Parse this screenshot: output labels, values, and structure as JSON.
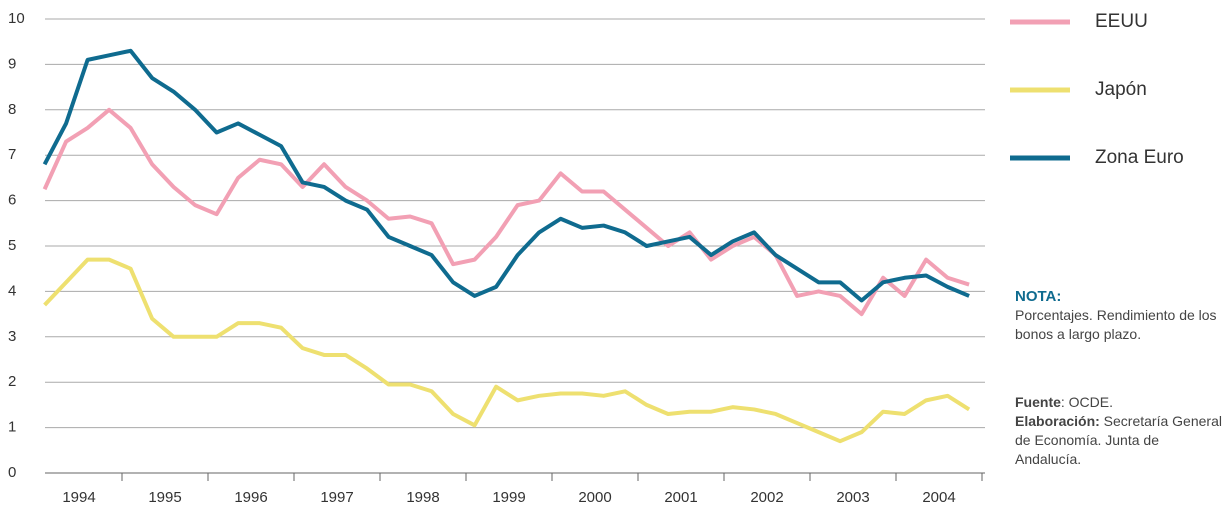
{
  "chart_data": {
    "type": "line",
    "x": [
      1994.1,
      1994.35,
      1994.6,
      1994.85,
      1995.1,
      1995.35,
      1995.6,
      1995.85,
      1996.1,
      1996.35,
      1996.6,
      1996.85,
      1997.1,
      1997.35,
      1997.6,
      1997.85,
      1998.1,
      1998.35,
      1998.6,
      1998.85,
      1999.1,
      1999.35,
      1999.6,
      1999.85,
      2000.1,
      2000.35,
      2000.6,
      2000.85,
      2001.1,
      2001.35,
      2001.6,
      2001.85,
      2002.1,
      2002.35,
      2002.6,
      2002.85,
      2003.1,
      2003.35,
      2003.6,
      2003.85,
      2004.1,
      2004.35,
      2004.6,
      2004.85
    ],
    "series": [
      {
        "name": "EEUU",
        "color": "#f2a0b4",
        "values": [
          6.25,
          7.3,
          7.6,
          8.0,
          7.6,
          6.8,
          6.3,
          5.9,
          5.7,
          6.5,
          6.9,
          6.8,
          6.3,
          6.8,
          6.3,
          6.0,
          5.6,
          5.65,
          5.5,
          4.6,
          4.7,
          5.2,
          5.9,
          6.0,
          6.6,
          6.2,
          6.2,
          5.8,
          5.4,
          5.0,
          5.3,
          4.7,
          5.0,
          5.2,
          4.8,
          3.9,
          4.0,
          3.9,
          3.5,
          4.3,
          3.9,
          4.7,
          4.3,
          4.15
        ]
      },
      {
        "name": "Japón",
        "color": "#eee070",
        "values": [
          3.7,
          4.2,
          4.7,
          4.7,
          4.5,
          3.4,
          3.0,
          3.0,
          3.0,
          3.3,
          3.3,
          3.2,
          2.75,
          2.6,
          2.6,
          2.3,
          1.95,
          1.95,
          1.8,
          1.3,
          1.05,
          1.9,
          1.6,
          1.7,
          1.75,
          1.75,
          1.7,
          1.8,
          1.5,
          1.3,
          1.35,
          1.35,
          1.45,
          1.4,
          1.3,
          1.1,
          0.9,
          0.7,
          0.9,
          1.35,
          1.3,
          1.6,
          1.7,
          1.4
        ]
      },
      {
        "name": "Zona Euro",
        "color": "#0f6b8f",
        "values": [
          6.8,
          7.7,
          9.1,
          9.2,
          9.3,
          8.7,
          8.4,
          8.0,
          7.5,
          7.7,
          7.45,
          7.2,
          6.4,
          6.3,
          6.0,
          5.8,
          5.2,
          5.0,
          4.8,
          4.2,
          3.9,
          4.1,
          4.8,
          5.3,
          5.6,
          5.4,
          5.45,
          5.3,
          5.0,
          5.1,
          5.2,
          4.8,
          5.1,
          5.3,
          4.8,
          4.5,
          4.2,
          4.2,
          3.8,
          4.2,
          4.3,
          4.35,
          4.1,
          3.9
        ]
      }
    ],
    "xlim": [
      1994,
      2005
    ],
    "xticks": [
      {
        "value": 1994.5,
        "label": "1994"
      },
      {
        "value": 1995.5,
        "label": "1995"
      },
      {
        "value": 1996.5,
        "label": "1996"
      },
      {
        "value": 1997.5,
        "label": "1997"
      },
      {
        "value": 1998.5,
        "label": "1998"
      },
      {
        "value": 1999.5,
        "label": "1999"
      },
      {
        "value": 2000.5,
        "label": "2000"
      },
      {
        "value": 2001.5,
        "label": "2001"
      },
      {
        "value": 2002.5,
        "label": "2002"
      },
      {
        "value": 2003.5,
        "label": "2003"
      },
      {
        "value": 2004.5,
        "label": "2004"
      }
    ],
    "ylim": [
      0,
      10
    ],
    "yticks": [
      0,
      1,
      2,
      3,
      4,
      5,
      6,
      7,
      8,
      9,
      10
    ],
    "grid": true,
    "legend": "right",
    "note": {
      "title": "NOTA:",
      "text": "Porcentajes. Rendimiento de los bonos a largo plazo."
    },
    "source": {
      "label": "Fuente",
      "text": ": OCDE."
    },
    "credit": {
      "label": "Elaboración:",
      "text": " Secretaría General de Economía. Junta de Andalucía."
    }
  }
}
